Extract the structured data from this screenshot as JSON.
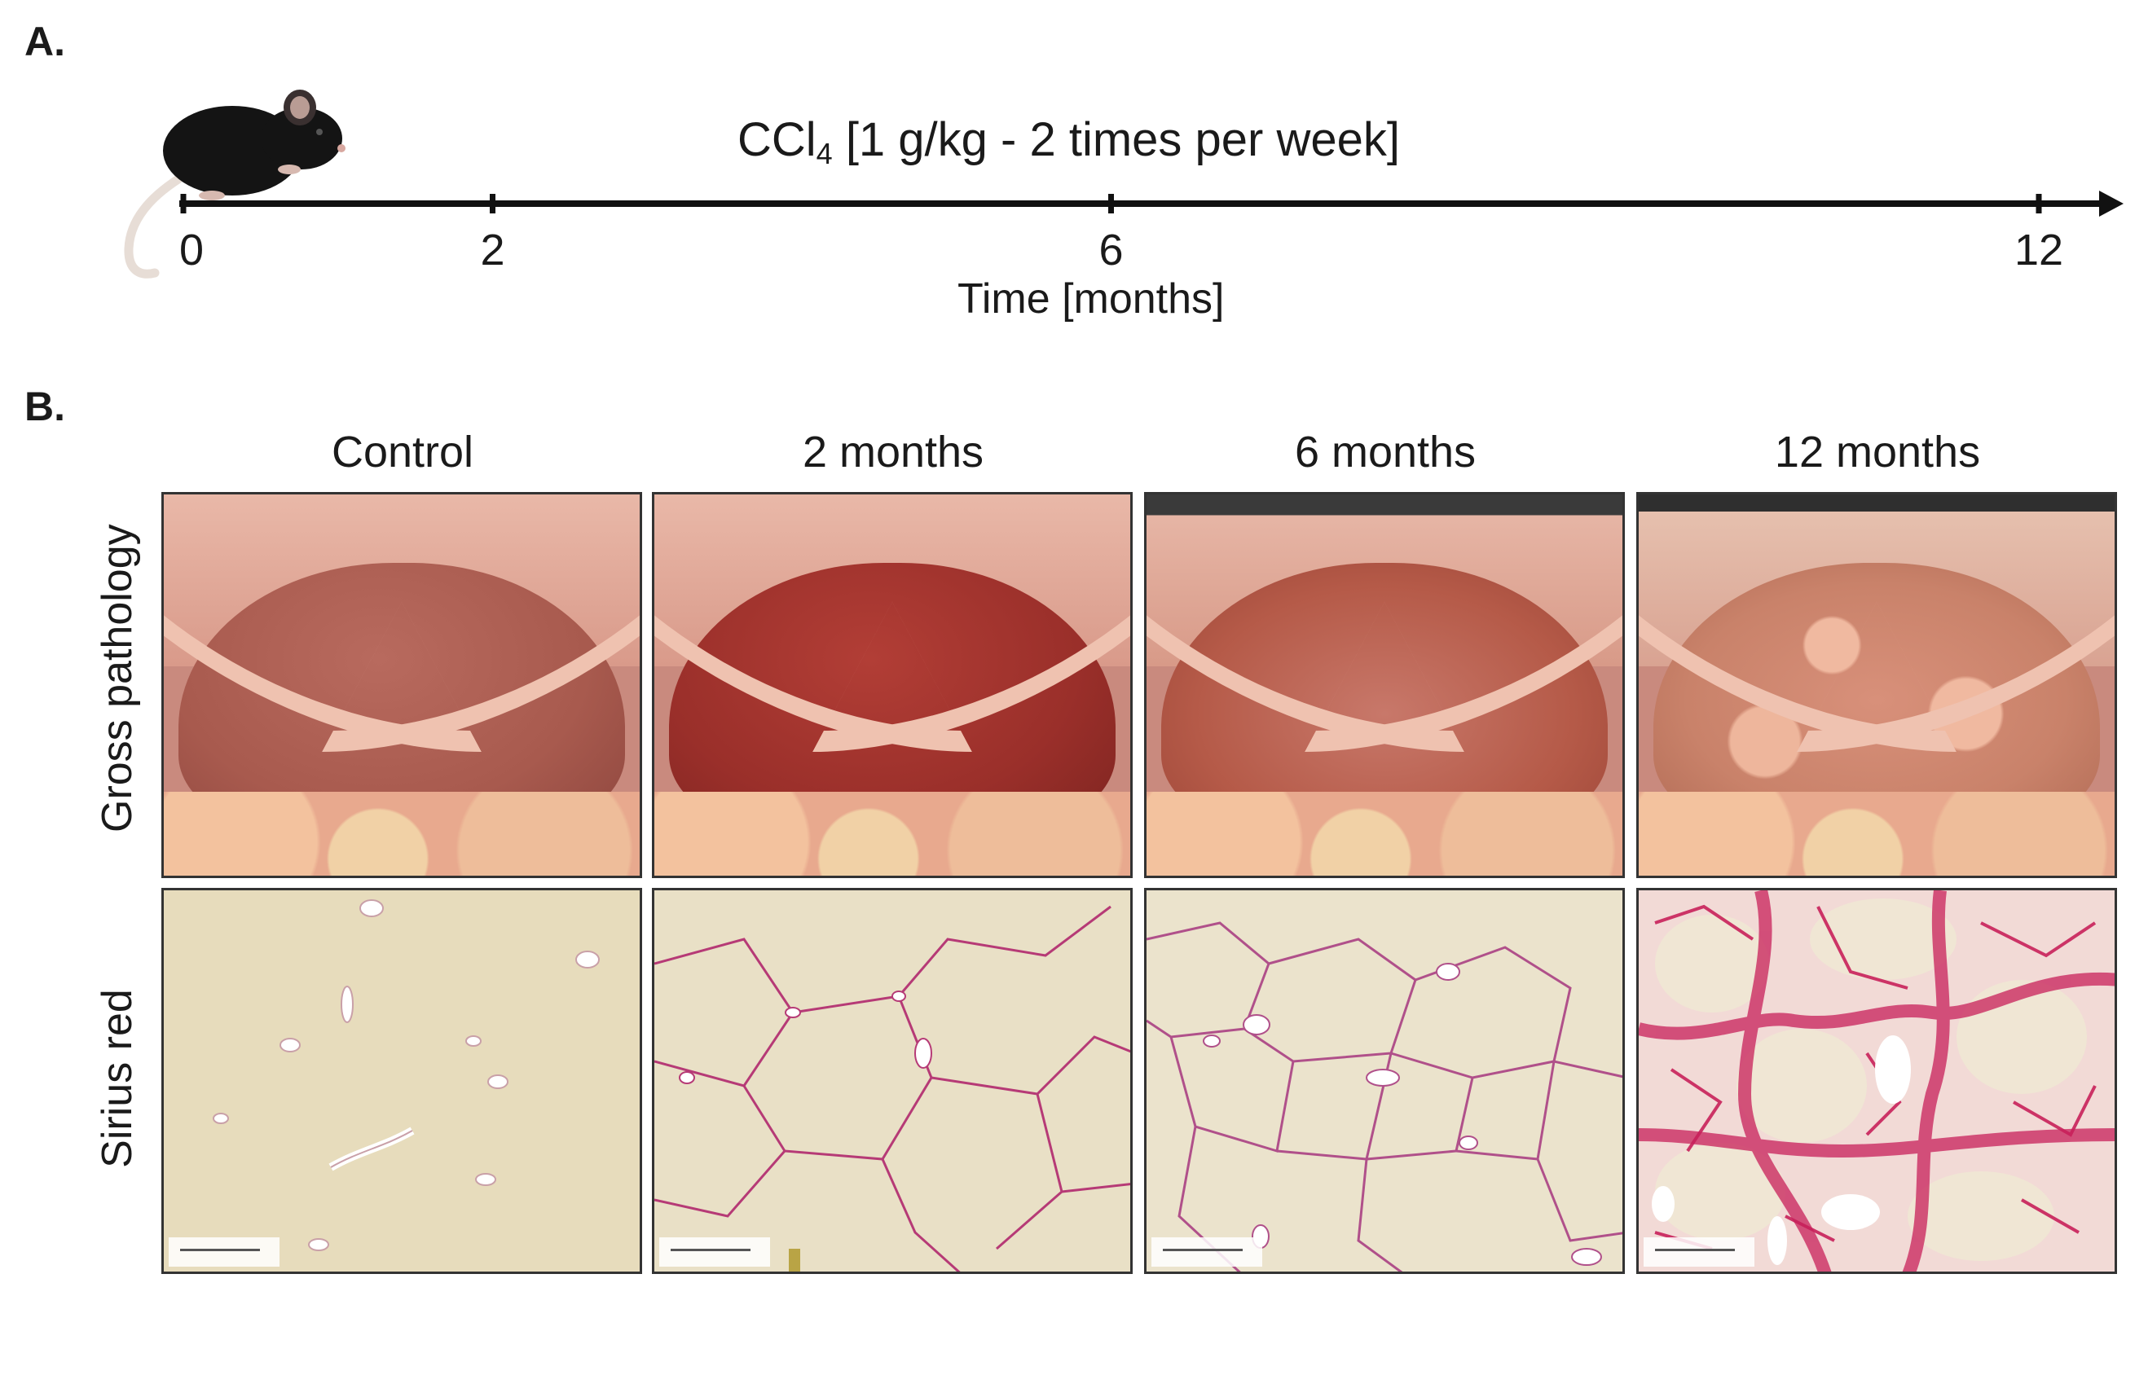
{
  "panel_a": {
    "label": "A.",
    "treatment_prefix": "CCl",
    "treatment_subscript": "4",
    "treatment_suffix": " [1 g/kg - 2 times per week]",
    "axis_title": "Time [months]",
    "ticks": [
      {
        "value": 0,
        "label": "0"
      },
      {
        "value": 2,
        "label": "2"
      },
      {
        "value": 6,
        "label": "6"
      },
      {
        "value": 12,
        "label": "12"
      }
    ],
    "axis_range": [
      0,
      12
    ]
  },
  "panel_b": {
    "label": "B.",
    "columns": [
      "Control",
      "2 months",
      "6 months",
      "12 months"
    ],
    "rows": [
      "Gross pathology",
      "Sirius red"
    ],
    "colors": {
      "liver_control": "#a85a4e",
      "liver_2m": "#9a2f2a",
      "liver_6m": "#b55a48",
      "liver_12m": "#c9826a",
      "sirius_stain": "#c8205a",
      "histology_background": "#eae0c4"
    }
  }
}
